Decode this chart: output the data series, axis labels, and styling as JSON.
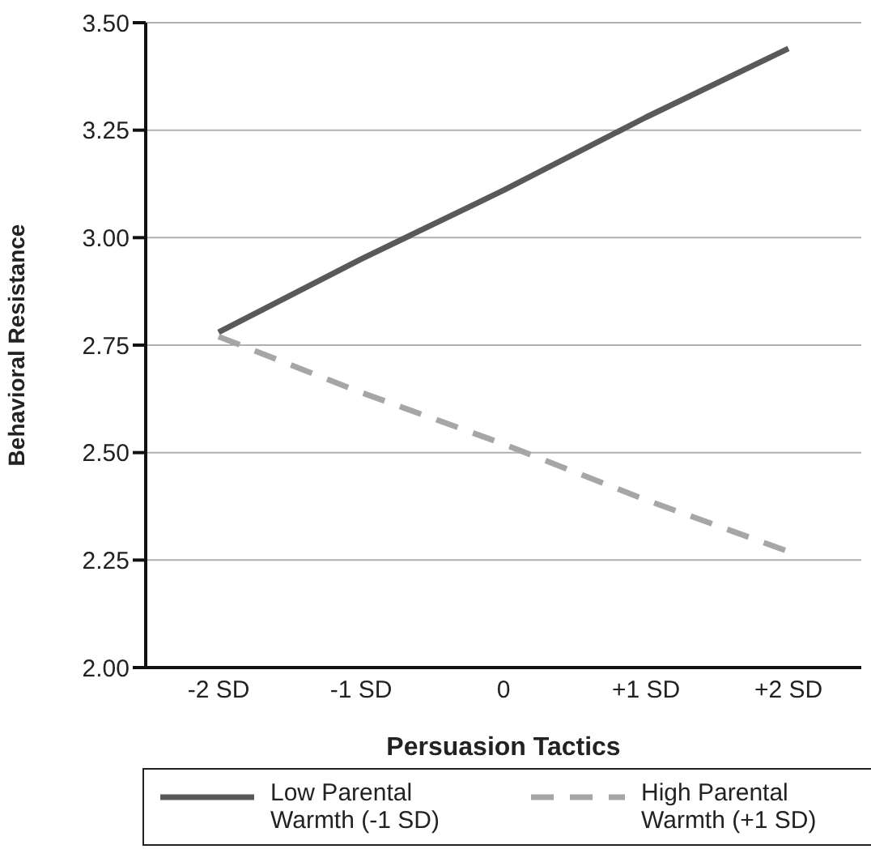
{
  "chart_data": {
    "type": "line",
    "xlabel": "Persuasion Tactics",
    "ylabel": "Behavioral Resistance",
    "categories": [
      "-2 SD",
      "-1 SD",
      "0",
      "+1 SD",
      "+2 SD"
    ],
    "series": [
      {
        "name": "Low Parental Warmth (-1 SD)",
        "color": "#595959",
        "line_style": "solid",
        "values": [
          2.78,
          2.95,
          3.11,
          3.28,
          3.44
        ]
      },
      {
        "name": "High Parental Warmth (+1 SD)",
        "color": "#a6a6a6",
        "line_style": "dashed",
        "values": [
          2.77,
          2.64,
          2.52,
          2.39,
          2.27
        ]
      }
    ],
    "ylim": [
      2.0,
      3.5
    ],
    "yticks": [
      {
        "value": 2.0,
        "label": "2.00"
      },
      {
        "value": 2.25,
        "label": "2.25"
      },
      {
        "value": 2.5,
        "label": "2.50"
      },
      {
        "value": 2.75,
        "label": "2.75"
      },
      {
        "value": 3.0,
        "label": "3.00"
      },
      {
        "value": 3.25,
        "label": "3.25"
      },
      {
        "value": 3.5,
        "label": "3.50"
      }
    ],
    "grid": "y",
    "legend": "bottom",
    "marker": "none"
  }
}
